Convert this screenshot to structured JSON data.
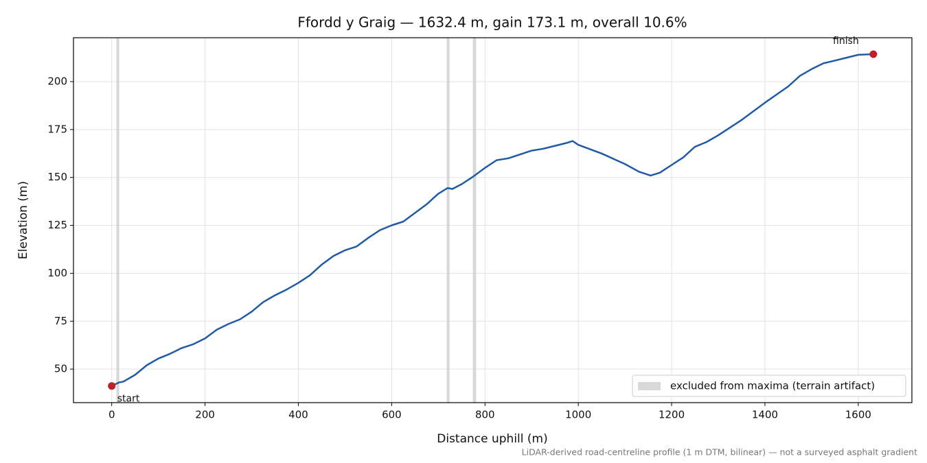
{
  "chart_data": {
    "type": "line",
    "title": "Ffordd y Graig — 1632.4 m, gain 173.1 m, overall 10.6%",
    "xlabel": "Distance uphill (m)",
    "ylabel": "Elevation (m)",
    "note": "LiDAR-derived road-centreline profile (1 m DTM, bilinear) — not a surveyed asphalt gradient",
    "x": [
      0,
      15,
      25,
      50,
      75,
      100,
      125,
      150,
      175,
      200,
      225,
      250,
      275,
      300,
      325,
      350,
      375,
      400,
      425,
      450,
      475,
      500,
      525,
      550,
      575,
      600,
      625,
      650,
      675,
      700,
      720,
      730,
      750,
      775,
      800,
      825,
      850,
      875,
      900,
      925,
      950,
      975,
      988,
      1000,
      1050,
      1100,
      1130,
      1155,
      1175,
      1200,
      1225,
      1250,
      1275,
      1300,
      1350,
      1400,
      1450,
      1475,
      1500,
      1525,
      1550,
      1575,
      1600,
      1632.4
    ],
    "values": [
      41.2,
      43,
      43.5,
      47,
      52,
      55.5,
      58,
      61,
      63,
      66,
      70.5,
      73.5,
      76,
      80,
      85,
      88.5,
      91.5,
      95,
      99,
      104.5,
      109,
      112,
      114,
      118.5,
      122.5,
      125,
      127,
      131.5,
      136,
      141.5,
      144.5,
      144,
      146.5,
      150.5,
      155,
      159,
      160,
      162,
      164,
      165,
      166.5,
      168,
      169,
      167,
      162.5,
      157,
      153,
      151,
      152.5,
      156.5,
      160.5,
      166,
      168.5,
      172,
      180,
      189,
      197.5,
      203,
      206.5,
      209.5,
      211,
      212.5,
      214,
      214.3
    ],
    "color": "#1f5aa6",
    "marker_color": "#c0202a",
    "start_label": "start",
    "finish_label": "finish",
    "excluded": [
      [
        10,
        16
      ],
      [
        718,
        724
      ],
      [
        774,
        781
      ]
    ],
    "excluded_color": "#c8c8c8",
    "excluded_label": "excluded from maxima (terrain artifact)",
    "legend": "lower right",
    "xlim": [
      -82,
      1715
    ],
    "ylim": [
      32.5,
      222.9
    ],
    "xticks": [
      0,
      200,
      400,
      600,
      800,
      1000,
      1200,
      1400,
      1600
    ],
    "yticks": [
      50,
      75,
      100,
      125,
      150,
      175,
      200
    ],
    "grid": true
  }
}
